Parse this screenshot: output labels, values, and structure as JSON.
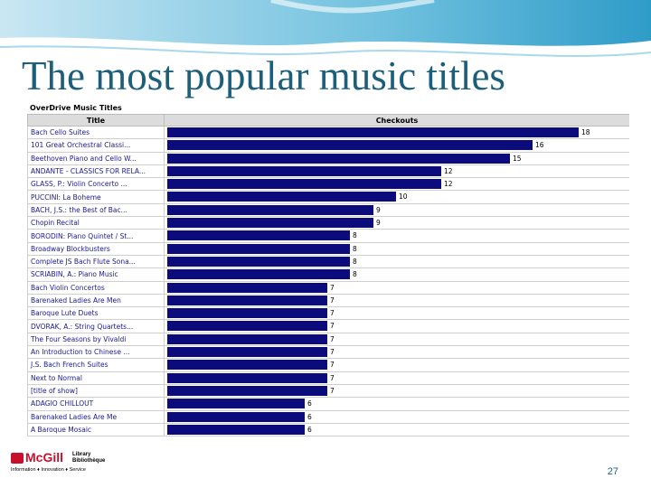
{
  "slide": {
    "title": "The most popular music titles",
    "page_number": "27",
    "logo": {
      "name": "McGill",
      "library": "Library",
      "bibliotheque": "Bibliothèque",
      "tagline": "Information ♦ Innovation ♦ Service"
    },
    "colors": {
      "title": "#1d5f7a",
      "bar": "#0b0b7c",
      "logo": "#c8102e"
    }
  },
  "chart_data": {
    "type": "bar",
    "orientation": "horizontal",
    "title": "OverDrive Music Titles",
    "column_headers": [
      "Title",
      "Checkouts"
    ],
    "xlim": [
      0,
      18
    ],
    "categories": [
      "Bach Cello Suites",
      "101 Great Orchestral Classi...",
      "Beethoven Piano and Cello W...",
      "ANDANTE - CLASSICS FOR RELA...",
      "GLASS, P.: Violin Concerto ...",
      "PUCCINI: La Boheme",
      "BACH, J.S.: the Best of Bac...",
      "Chopin Recital",
      "BORODIN: Piano Quintet / St...",
      "Broadway Blockbusters",
      "Complete JS Bach Flute Sona...",
      "SCRIABIN, A.: Piano Music",
      "Bach Violin Concertos",
      "Barenaked Ladies Are Men",
      "Baroque Lute Duets",
      "DVORAK, A.: String Quartets...",
      "The Four Seasons by Vivaldi",
      "An Introduction to Chinese ...",
      "J.S. Bach French Suites",
      "Next to Normal",
      "[title of show]",
      "ADAGIO CHILLOUT",
      "Barenaked Ladies Are Me",
      "A Baroque Mosaic"
    ],
    "values": [
      18,
      16,
      15,
      12,
      12,
      10,
      9,
      9,
      8,
      8,
      8,
      8,
      7,
      7,
      7,
      7,
      7,
      7,
      7,
      7,
      7,
      6,
      6,
      6
    ]
  }
}
